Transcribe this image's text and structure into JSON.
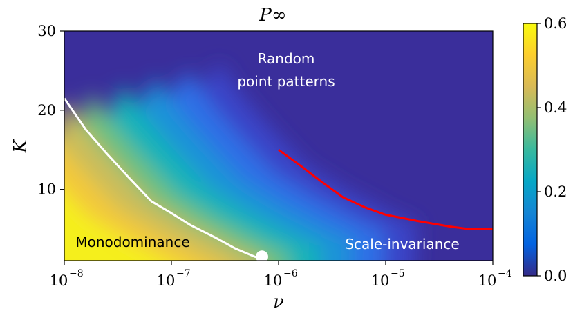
{
  "chart_data": {
    "type": "heatmap",
    "title": "P∞",
    "xlabel": "ν",
    "ylabel": "K",
    "xscale": "log",
    "xlim": [
      1e-08,
      0.0001
    ],
    "ylim": [
      1,
      30
    ],
    "x_ticks": [
      {
        "base": "10",
        "exp": "−8",
        "value": 1e-08
      },
      {
        "base": "10",
        "exp": "−7",
        "value": 1e-07
      },
      {
        "base": "10",
        "exp": "−6",
        "value": 1e-06
      },
      {
        "base": "10",
        "exp": "−5",
        "value": 1e-05
      },
      {
        "base": "10",
        "exp": "−4",
        "value": 0.0001
      }
    ],
    "y_ticks": [
      {
        "label": "10",
        "value": 10
      },
      {
        "label": "20",
        "value": 20
      },
      {
        "label": "30",
        "value": 30
      }
    ],
    "colorbar": {
      "colormap": "parula",
      "range": [
        0.0,
        0.6
      ],
      "ticks": [
        {
          "label": "0.0",
          "value": 0.0
        },
        {
          "label": "0.2",
          "value": 0.2
        },
        {
          "label": "0.4",
          "value": 0.4
        },
        {
          "label": "0.6",
          "value": 0.6
        }
      ],
      "colors": [
        "#352a87",
        "#0363e1",
        "#1485d4",
        "#06a7c6",
        "#38b99e",
        "#92bf73",
        "#d9ba56",
        "#fcce2e",
        "#f9fb0e"
      ]
    },
    "lines": [
      {
        "color": "#ffffff",
        "points": [
          [
            1e-08,
            21.5
          ],
          [
            1.6e-08,
            17.5
          ],
          [
            2.5e-08,
            14.5
          ],
          [
            4e-08,
            11.5
          ],
          [
            6.5e-08,
            8.5
          ],
          [
            1e-07,
            7.0
          ],
          [
            1.5e-07,
            5.5
          ],
          [
            2.5e-07,
            4.0
          ],
          [
            4e-07,
            2.5
          ],
          [
            6e-07,
            1.5
          ],
          [
            7e-07,
            1.3
          ]
        ]
      },
      {
        "color": "#ff0000",
        "points": [
          [
            1e-06,
            15.0
          ],
          [
            1.6e-06,
            13.0
          ],
          [
            2.5e-06,
            11.0
          ],
          [
            4e-06,
            9.0
          ],
          [
            6.5e-06,
            7.7
          ],
          [
            1e-05,
            6.8
          ],
          [
            2e-05,
            6.0
          ],
          [
            4e-05,
            5.3
          ],
          [
            6e-05,
            5.0
          ],
          [
            0.0001,
            5.0
          ]
        ]
      }
    ],
    "marker": {
      "x": 7e-07,
      "y": 1.5,
      "color": "#ffffff"
    },
    "annotations": {
      "top_line1": "Random",
      "top_line2": "point patterns",
      "bottom_left": "Monodominance",
      "bottom_right": "Scale-invariance"
    }
  }
}
